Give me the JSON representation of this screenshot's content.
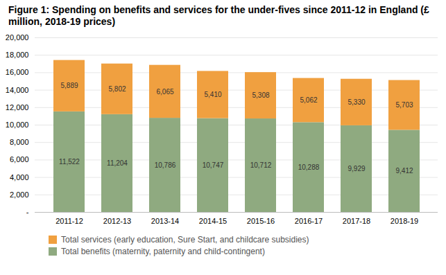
{
  "chart_data": {
    "type": "bar",
    "title": "Figure 1: Spending on benefits and services for the under-fives since 2011-12 in England (£ million, 2018-19 prices)",
    "categories": [
      "2011-12",
      "2012-13",
      "2013-14",
      "2014-15",
      "2015-16",
      "2016-17",
      "2017-18",
      "2018-19"
    ],
    "series": [
      {
        "name": "Total benefits (maternity, paternity and child-contingent)",
        "color": "#8faa80",
        "values": [
          11522,
          11204,
          10786,
          10747,
          10712,
          10288,
          9929,
          9412
        ],
        "value_labels": [
          "11,522",
          "11,204",
          "10,786",
          "10,747",
          "10,712",
          "10,288",
          "9,929",
          "9,412"
        ]
      },
      {
        "name": "Total services (early education, Sure Start, and childcare subsidies)",
        "color": "#f0a040",
        "values": [
          5889,
          5802,
          6065,
          5410,
          5308,
          5062,
          5330,
          5703
        ],
        "value_labels": [
          "5,889",
          "5,802",
          "6,065",
          "5,410",
          "5,308",
          "5,062",
          "5,330",
          "5,703"
        ]
      }
    ],
    "stacked": true,
    "data_labels": true,
    "ylim": [
      0,
      20000
    ],
    "yticks": [
      {
        "value": 0,
        "label": "-"
      },
      {
        "value": 2000,
        "label": "2,000"
      },
      {
        "value": 4000,
        "label": "4,000"
      },
      {
        "value": 6000,
        "label": "6,000"
      },
      {
        "value": 8000,
        "label": "8,000"
      },
      {
        "value": 10000,
        "label": "10,000"
      },
      {
        "value": 12000,
        "label": "12,000"
      },
      {
        "value": 14000,
        "label": "14,000"
      },
      {
        "value": 16000,
        "label": "16,000"
      },
      {
        "value": 18000,
        "label": "18,000"
      },
      {
        "value": 20000,
        "label": "20,000"
      }
    ],
    "grid": true,
    "legend": "bottom"
  }
}
